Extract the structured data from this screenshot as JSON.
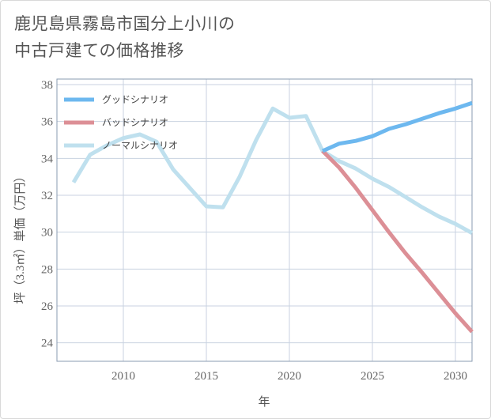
{
  "title": {
    "line1": "鹿児島県霧島市国分上小川の",
    "line2": "中古戸建ての価格推移"
  },
  "colors": {
    "good": "#6db8ef",
    "bad": "#dc8f96",
    "normal": "#bfe0ee",
    "grid": "#c8d2e0",
    "plot_border": "#8a9bb0"
  },
  "chart_data": {
    "type": "line",
    "xlabel": "年",
    "ylabel": "坪（3.3㎡）単価（万円）",
    "xlim": [
      2006,
      2031
    ],
    "ylim": [
      23,
      38.3
    ],
    "x_ticks": [
      2010,
      2015,
      2020,
      2025,
      2030
    ],
    "y_ticks": [
      24,
      26,
      28,
      30,
      32,
      34,
      36,
      38
    ],
    "grid": true,
    "legend_position": "top-left",
    "series": [
      {
        "name": "グッドシナリオ",
        "color": "#6db8ef",
        "x": [
          2022,
          2023,
          2024,
          2025,
          2026,
          2027,
          2028,
          2029,
          2030,
          2031
        ],
        "values": [
          34.4,
          34.8,
          34.95,
          35.2,
          35.6,
          35.85,
          36.15,
          36.45,
          36.7,
          37.0
        ]
      },
      {
        "name": "バッドシナリオ",
        "color": "#dc8f96",
        "x": [
          2022,
          2023,
          2024,
          2025,
          2026,
          2027,
          2028,
          2029,
          2030,
          2031
        ],
        "values": [
          34.4,
          33.5,
          32.4,
          31.2,
          30.0,
          28.85,
          27.8,
          26.7,
          25.6,
          24.6
        ]
      },
      {
        "name": "ノーマルシナリオ",
        "color": "#bfe0ee",
        "x": [
          2007,
          2008,
          2009,
          2010,
          2011,
          2012,
          2013,
          2014,
          2015,
          2016,
          2017,
          2018,
          2019,
          2020,
          2021,
          2022,
          2023,
          2024,
          2025,
          2026,
          2027,
          2028,
          2029,
          2030,
          2031
        ],
        "values": [
          32.7,
          34.2,
          34.7,
          35.1,
          35.3,
          34.9,
          33.4,
          32.4,
          31.4,
          31.35,
          33.0,
          35.0,
          36.7,
          36.2,
          36.3,
          34.4,
          33.85,
          33.45,
          32.9,
          32.45,
          31.9,
          31.35,
          30.85,
          30.45,
          29.95
        ]
      }
    ]
  }
}
